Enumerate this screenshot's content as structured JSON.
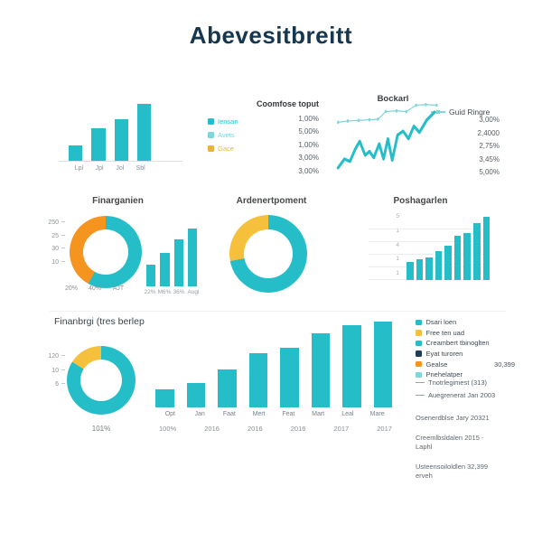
{
  "title": "Abevesitbreitt",
  "colors": {
    "teal": "#25BEC8",
    "light_teal": "#7FD6DA",
    "yellow": "#F5C13C",
    "orange": "#F5941F",
    "navy": "#1F3B57"
  },
  "chart_data": [
    {
      "id": "top-left-bars",
      "type": "bar",
      "categories": [
        "Lpl",
        "Jpl",
        "Jol",
        "Sbl"
      ],
      "values": [
        17,
        36,
        46,
        63
      ],
      "title": "",
      "xlabel": "",
      "ylabel": ""
    },
    {
      "id": "comfose-table",
      "type": "table",
      "title": "Coomfose toput",
      "legend": [
        {
          "label": "Iensan",
          "color": "#25BEC8"
        },
        {
          "label": "Avets",
          "color": "#7FD6DA"
        },
        {
          "label": "Gace",
          "color": "#E8B43C"
        }
      ],
      "values": [
        "1,00%",
        "5,00%",
        "1,00%",
        "3,00%",
        "3,00%"
      ]
    },
    {
      "id": "bockarl",
      "type": "line",
      "title": "Bockarl",
      "legend_label": "Guid Ringre",
      "values_column": [
        "3,00%",
        "2,4000",
        "2,75%",
        "3,45%",
        "5,00%"
      ],
      "series": [
        {
          "name": "Guid Ringre",
          "points": [
            [
              1,
              16
            ],
            [
              10,
              15
            ],
            [
              20,
              14.5
            ],
            [
              30,
              14
            ],
            [
              38,
              13.5
            ],
            [
              45,
              7.5
            ],
            [
              55,
              7
            ],
            [
              64,
              7.5
            ],
            [
              73,
              2.5
            ],
            [
              82,
              2
            ],
            [
              92,
              2.5
            ]
          ]
        },
        {
          "name": "Bockarl",
          "points": [
            [
              1,
              52
            ],
            [
              7,
              45
            ],
            [
              12,
              47
            ],
            [
              17,
              37
            ],
            [
              21,
              31
            ],
            [
              26,
              42
            ],
            [
              30,
              39
            ],
            [
              34,
              44
            ],
            [
              39,
              33
            ],
            [
              43,
              45
            ],
            [
              47,
              29
            ],
            [
              51,
              46
            ],
            [
              56,
              26
            ],
            [
              61,
              23
            ],
            [
              66,
              29
            ],
            [
              71,
              19
            ],
            [
              76,
              24
            ],
            [
              83,
              14
            ],
            [
              90,
              8
            ]
          ]
        }
      ]
    },
    {
      "id": "finarganien-donut",
      "type": "pie",
      "title": "Finarganien",
      "slices": [
        {
          "label": "segment-a",
          "value": 58,
          "color": "#25BEC8"
        },
        {
          "label": "segment-b",
          "value": 42,
          "color": "#F5941F"
        }
      ],
      "y_ticks": [
        "250",
        "25",
        "30",
        "10"
      ],
      "x_labels": [
        "20%",
        "40%",
        "AJT"
      ]
    },
    {
      "id": "finarganien-mini-bars",
      "type": "bar",
      "categories": [
        "22%",
        "M6%",
        "36%",
        "Augl"
      ],
      "values": [
        24,
        37,
        52,
        64
      ]
    },
    {
      "id": "ardenertpoment-donut",
      "type": "pie",
      "title": "Ardenertpoment",
      "slices": [
        {
          "label": "segment-a",
          "value": 72,
          "color": "#25BEC8"
        },
        {
          "label": "segment-b",
          "value": 28,
          "color": "#F5C13C"
        }
      ]
    },
    {
      "id": "poshagarlen-bars",
      "type": "bar",
      "title": "Poshagarlen",
      "y_ticks": [
        "5",
        "1",
        "4",
        "1",
        "1"
      ],
      "values": [
        20,
        23,
        25,
        32,
        37,
        48,
        51,
        62,
        69
      ]
    },
    {
      "id": "finanbrgi-donut",
      "type": "pie",
      "title": "Finanbrgi (tres berlep",
      "slices": [
        {
          "label": "segment-a",
          "value": 84,
          "color": "#25BEC8"
        },
        {
          "label": "segment-b",
          "value": 16,
          "color": "#F5C13C"
        }
      ],
      "y_ticks": [
        "120",
        "10",
        "6"
      ],
      "label_below": "101%"
    },
    {
      "id": "finanbrgi-bars",
      "type": "bar",
      "categories": [
        "Opt",
        "Jan",
        "Faat",
        "Mert",
        "Feat",
        "Mart",
        "Leal",
        "Mare"
      ],
      "values": [
        20,
        26,
        41,
        59,
        65,
        80,
        89,
        93
      ],
      "secondary_row": [
        "100%",
        "2016",
        "2016",
        "2016",
        "2017",
        "2017"
      ]
    },
    {
      "id": "finanbrgi-legend",
      "type": "legend",
      "items": [
        {
          "label": "Dsari loen",
          "color": "#25BEC8"
        },
        {
          "label": "Free ten uad",
          "color": "#F5C13C"
        },
        {
          "label": "Creambert tbinoglten",
          "color": "#25BEC8"
        },
        {
          "label": "Eyat turoren",
          "color": "#1F3B57"
        },
        {
          "label": "Gealse",
          "color": "#F5941F",
          "value": "30,399"
        },
        {
          "label": "Pnehelatper",
          "color": "#7FD6DA"
        }
      ],
      "line_items": [
        {
          "label": "Tnotrlegimest (313)",
          "marker": "line"
        },
        {
          "label": "Auegrenerat Jan 2003",
          "marker": "line"
        }
      ],
      "notes": [
        "Osenerdblse Jary 20321",
        "Creemlbsldalen 2015 - Laphl",
        "Usteensoiloldlen 32,399 erveh"
      ]
    }
  ]
}
